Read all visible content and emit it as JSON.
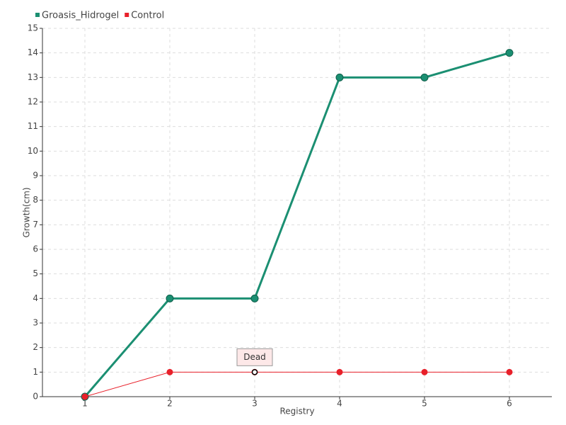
{
  "chart_data": {
    "type": "line",
    "x": [
      1,
      2,
      3,
      4,
      5,
      6
    ],
    "series": [
      {
        "name": "Groasis_Hidrogel",
        "color": "#1b8f72",
        "values": [
          0,
          4,
          4,
          13,
          13,
          14
        ]
      },
      {
        "name": "Control",
        "color": "#e8202a",
        "values": [
          0,
          1,
          1,
          1,
          1,
          1
        ]
      }
    ],
    "xlabel": "Registry",
    "ylabel": "Growth(cm)",
    "xlim": [
      0.5,
      6.5
    ],
    "xticks": [
      1,
      2,
      3,
      4,
      5,
      6
    ],
    "ylim": [
      0,
      15
    ],
    "yticks": [
      0,
      1,
      2,
      3,
      4,
      5,
      6,
      7,
      8,
      9,
      10,
      11,
      12,
      13,
      14,
      15
    ],
    "grid": true,
    "legend": "top-left",
    "annotations": [
      {
        "x": 3,
        "y": 1,
        "text": "Dead"
      }
    ]
  }
}
